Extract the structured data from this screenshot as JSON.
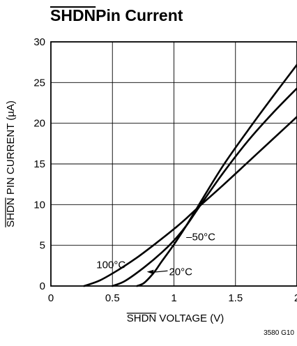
{
  "figure_id": "3580 G10",
  "chart_data": {
    "type": "line",
    "title": "SHDN Pin Current",
    "title_overline_text": "SHDN",
    "xlabel": "SHDN VOLTAGE (V)",
    "xlabel_overline_text": "SHDN",
    "xlabel_rest": " VOLTAGE (V)",
    "ylabel": "SHDN PIN CURRENT (µA)",
    "ylabel_overline_text": "SHDN",
    "ylabel_rest": " PIN CURRENT (µA)",
    "xlim": [
      0,
      2
    ],
    "ylim": [
      0,
      30
    ],
    "xticks": [
      0,
      0.5,
      1,
      1.5,
      2
    ],
    "xtick_labels": [
      "0",
      "0.5",
      "1",
      "1.5",
      "2"
    ],
    "yticks": [
      0,
      5,
      10,
      15,
      20,
      25,
      30
    ],
    "ytick_labels": [
      "0",
      "5",
      "10",
      "15",
      "20",
      "25",
      "30"
    ],
    "grid": true,
    "series": [
      {
        "name": "100°C",
        "points": [
          [
            0.27,
            0
          ],
          [
            0.4,
            0.7
          ],
          [
            0.55,
            2.0
          ],
          [
            0.7,
            3.5
          ],
          [
            0.85,
            5.2
          ],
          [
            1.0,
            7.0
          ],
          [
            1.1,
            8.3
          ],
          [
            1.2,
            9.7
          ],
          [
            1.4,
            12.4
          ],
          [
            1.6,
            15.2
          ],
          [
            1.8,
            18.0
          ],
          [
            2.0,
            20.8
          ]
        ]
      },
      {
        "name": "20°C",
        "points": [
          [
            0.5,
            0
          ],
          [
            0.6,
            0.6
          ],
          [
            0.75,
            2.2
          ],
          [
            0.9,
            4.1
          ],
          [
            1.0,
            5.6
          ],
          [
            1.1,
            7.4
          ],
          [
            1.2,
            9.6
          ],
          [
            1.4,
            13.9
          ],
          [
            1.6,
            17.8
          ],
          [
            1.8,
            21.2
          ],
          [
            2.0,
            24.3
          ]
        ]
      },
      {
        "name": "–50°C",
        "points": [
          [
            0.7,
            0
          ],
          [
            0.75,
            0.3
          ],
          [
            0.8,
            1.0
          ],
          [
            0.85,
            1.9
          ],
          [
            0.9,
            3.0
          ],
          [
            1.0,
            5.1
          ],
          [
            1.1,
            7.4
          ],
          [
            1.2,
            9.9
          ],
          [
            1.4,
            14.8
          ],
          [
            1.6,
            19.1
          ],
          [
            1.8,
            23.2
          ],
          [
            2.0,
            27.2
          ]
        ]
      }
    ],
    "annotations": [
      {
        "label": "100°C",
        "x": 0.37,
        "y": 2.2
      },
      {
        "label": "20°C",
        "x": 0.96,
        "y": 1.35
      },
      {
        "label": "–50°C",
        "x": 1.1,
        "y": 5.6
      }
    ]
  }
}
